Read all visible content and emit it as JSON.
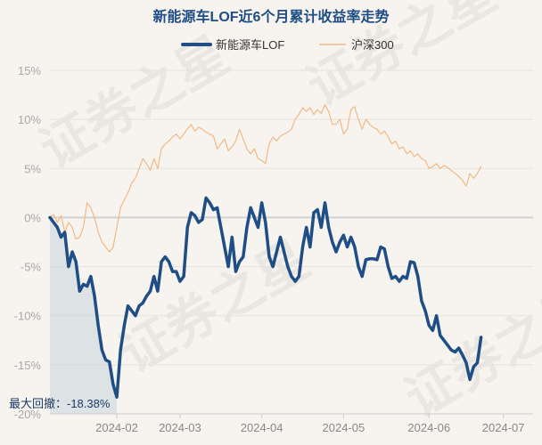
{
  "chart_data": {
    "type": "line",
    "title": "新能源车LOF近6个月累计收益率走势",
    "ylim": [
      -20,
      15
    ],
    "yticks": [
      15,
      10,
      5,
      0,
      -5,
      -10,
      -15,
      -20
    ],
    "ytick_labels": [
      "15%",
      "10%",
      "5%",
      "0%",
      "-5%",
      "-10%",
      "-15%",
      "-20%"
    ],
    "xticks": [
      "2024-02",
      "2024-03",
      "2024-04",
      "2024-05",
      "2024-06",
      "2024-07"
    ],
    "xtick_positions": [
      18,
      35,
      57,
      79,
      102,
      122
    ],
    "n_points": 131,
    "series": [
      {
        "name": "新能源车LOF",
        "color": "#1f4e86",
        "points": [
          [
            0,
            0
          ],
          [
            2,
            -1
          ],
          [
            3,
            -2
          ],
          [
            4,
            -1.5
          ],
          [
            5,
            -5
          ],
          [
            6,
            -3.5
          ],
          [
            7,
            -4.5
          ],
          [
            8,
            -7.5
          ],
          [
            9,
            -6.8
          ],
          [
            10,
            -7
          ],
          [
            11,
            -6
          ],
          [
            12,
            -8
          ],
          [
            13,
            -11
          ],
          [
            14,
            -13.5
          ],
          [
            15,
            -14.5
          ],
          [
            16,
            -14.7
          ],
          [
            17,
            -17
          ],
          [
            18,
            -18.3
          ],
          [
            19,
            -13.5
          ],
          [
            20,
            -11
          ],
          [
            21,
            -9
          ],
          [
            22,
            -9.5
          ],
          [
            23,
            -10
          ],
          [
            24,
            -9
          ],
          [
            25,
            -8.7
          ],
          [
            26,
            -8
          ],
          [
            27,
            -7.5
          ],
          [
            28,
            -6
          ],
          [
            29,
            -7.5
          ],
          [
            30,
            -4.5
          ],
          [
            31,
            -4
          ],
          [
            32,
            -4.5
          ],
          [
            33,
            -5.5
          ],
          [
            34,
            -5.5
          ],
          [
            35,
            -6.5
          ],
          [
            36,
            -6
          ],
          [
            37,
            -1
          ],
          [
            38,
            0.5
          ],
          [
            39,
            0.2
          ],
          [
            40,
            -0.5
          ],
          [
            41,
            -0.2
          ],
          [
            42,
            2
          ],
          [
            43,
            1.5
          ],
          [
            44,
            0.8
          ],
          [
            45,
            1
          ],
          [
            46,
            -1
          ],
          [
            47,
            -3
          ],
          [
            48,
            -5
          ],
          [
            49,
            -2
          ],
          [
            50,
            -5.5
          ],
          [
            51,
            -4.5
          ],
          [
            52,
            -4
          ],
          [
            53,
            -1
          ],
          [
            54,
            1
          ],
          [
            55,
            0
          ],
          [
            56,
            -1
          ],
          [
            57,
            1.5
          ],
          [
            58,
            -0.5
          ],
          [
            59,
            -4
          ],
          [
            60,
            -5
          ],
          [
            61,
            -3.5
          ],
          [
            62,
            -2
          ],
          [
            63,
            -3.5
          ],
          [
            64,
            -5
          ],
          [
            65,
            -6
          ],
          [
            66,
            -6.5
          ],
          [
            67,
            -6
          ],
          [
            68,
            -3
          ],
          [
            69,
            -1
          ],
          [
            70,
            -3
          ],
          [
            71,
            0.5
          ],
          [
            72,
            0.8
          ],
          [
            73,
            -1
          ],
          [
            74,
            1.5
          ],
          [
            75,
            -1
          ],
          [
            76,
            -2.5
          ],
          [
            77,
            -3.5
          ],
          [
            78,
            -2.5
          ],
          [
            79,
            -1.8
          ],
          [
            80,
            -3
          ],
          [
            81,
            -2
          ],
          [
            82,
            -3
          ],
          [
            83,
            -5
          ],
          [
            84,
            -6
          ],
          [
            85,
            -4.3
          ],
          [
            86,
            -4.2
          ],
          [
            87,
            -4.2
          ],
          [
            88,
            -4.3
          ],
          [
            89,
            -3
          ],
          [
            90,
            -3.2
          ],
          [
            91,
            -5
          ],
          [
            92,
            -6.2
          ],
          [
            93,
            -6
          ],
          [
            94,
            -6.5
          ],
          [
            95,
            -6
          ],
          [
            96,
            -6.2
          ],
          [
            97,
            -4.5
          ],
          [
            98,
            -4.6
          ],
          [
            99,
            -6
          ],
          [
            100,
            -8.5
          ],
          [
            101,
            -9.5
          ],
          [
            102,
            -11
          ],
          [
            103,
            -11.5
          ],
          [
            104,
            -10
          ],
          [
            105,
            -12
          ],
          [
            106,
            -12.5
          ],
          [
            107,
            -13
          ],
          [
            108,
            -13.5
          ],
          [
            109,
            -13.7
          ],
          [
            110,
            -13.3
          ],
          [
            111,
            -14
          ],
          [
            112,
            -14.8
          ],
          [
            113,
            -16.5
          ],
          [
            114,
            -15.2
          ],
          [
            115,
            -14.8
          ],
          [
            116,
            -12.2
          ]
        ]
      },
      {
        "name": "沪深300",
        "color": "#f2b986",
        "points": [
          [
            0,
            0
          ],
          [
            1,
            0.3
          ],
          [
            2,
            -0.5
          ],
          [
            3,
            0.2
          ],
          [
            4,
            -1.5
          ],
          [
            5,
            -0.5
          ],
          [
            6,
            -1
          ],
          [
            7,
            -2.2
          ],
          [
            8,
            -2
          ],
          [
            9,
            -1
          ],
          [
            10,
            1.5
          ],
          [
            11,
            1
          ],
          [
            12,
            0
          ],
          [
            13,
            -1.5
          ],
          [
            14,
            -2.5
          ],
          [
            15,
            -3
          ],
          [
            16,
            -3.5
          ],
          [
            17,
            -3
          ],
          [
            18,
            -1
          ],
          [
            19,
            1
          ],
          [
            20,
            1.8
          ],
          [
            21,
            2.5
          ],
          [
            22,
            3.5
          ],
          [
            23,
            4
          ],
          [
            24,
            5
          ],
          [
            25,
            6
          ],
          [
            26,
            5.5
          ],
          [
            27,
            4.8
          ],
          [
            28,
            6
          ],
          [
            29,
            5
          ],
          [
            30,
            7
          ],
          [
            31,
            7.5
          ],
          [
            32,
            7.8
          ],
          [
            33,
            8.2
          ],
          [
            34,
            8.5
          ],
          [
            35,
            8
          ],
          [
            36,
            8.5
          ],
          [
            37,
            9
          ],
          [
            38,
            9.5
          ],
          [
            39,
            8.8
          ],
          [
            40,
            9.2
          ],
          [
            41,
            9
          ],
          [
            42,
            8.7
          ],
          [
            43,
            8.5
          ],
          [
            44,
            8.3
          ],
          [
            45,
            7
          ],
          [
            46,
            7.5
          ],
          [
            47,
            8
          ],
          [
            48,
            6.8
          ],
          [
            49,
            7.2
          ],
          [
            50,
            7.8
          ],
          [
            51,
            9
          ],
          [
            52,
            8
          ],
          [
            53,
            7
          ],
          [
            54,
            6.5
          ],
          [
            55,
            7
          ],
          [
            56,
            6
          ],
          [
            57,
            5.8
          ],
          [
            58,
            5.5
          ],
          [
            59,
            7.5
          ],
          [
            60,
            8.2
          ],
          [
            61,
            7.8
          ],
          [
            62,
            8.3
          ],
          [
            63,
            8.5
          ],
          [
            64,
            8.7
          ],
          [
            65,
            9
          ],
          [
            66,
            10
          ],
          [
            67,
            10.5
          ],
          [
            68,
            11.2
          ],
          [
            69,
            10.8
          ],
          [
            70,
            11.2
          ],
          [
            71,
            10.5
          ],
          [
            72,
            11
          ],
          [
            73,
            10.6
          ],
          [
            74,
            11.5
          ],
          [
            75,
            10.8
          ],
          [
            76,
            9.5
          ],
          [
            77,
            9.5
          ],
          [
            78,
            10
          ],
          [
            79,
            8.5
          ],
          [
            80,
            9
          ],
          [
            81,
            11
          ],
          [
            82,
            11.3
          ],
          [
            83,
            10
          ],
          [
            84,
            9
          ],
          [
            85,
            10
          ],
          [
            86,
            9.5
          ],
          [
            87,
            9.2
          ],
          [
            88,
            9
          ],
          [
            89,
            8.5
          ],
          [
            90,
            8.8
          ],
          [
            91,
            8.2
          ],
          [
            92,
            7.5
          ],
          [
            93,
            7.8
          ],
          [
            94,
            7
          ],
          [
            95,
            7.2
          ],
          [
            96,
            6.5
          ],
          [
            97,
            6.8
          ],
          [
            98,
            6.2
          ],
          [
            99,
            6.5
          ],
          [
            100,
            6
          ],
          [
            101,
            5.8
          ],
          [
            102,
            5
          ],
          [
            103,
            5.2
          ],
          [
            104,
            5.5
          ],
          [
            105,
            5
          ],
          [
            106,
            5.3
          ],
          [
            107,
            5.1
          ],
          [
            108,
            4.8
          ],
          [
            109,
            4.5
          ],
          [
            110,
            4.2
          ],
          [
            111,
            3.8
          ],
          [
            112,
            3.2
          ],
          [
            113,
            4.5
          ],
          [
            114,
            4
          ],
          [
            115,
            4.5
          ],
          [
            116,
            5.2
          ]
        ]
      }
    ],
    "max_drawdown_label": "最大回撤：-18.38%",
    "max_drawdown": {
      "start_index": 0,
      "end_index": 18,
      "value": -18.38
    },
    "watermark_text": "证券之星"
  }
}
